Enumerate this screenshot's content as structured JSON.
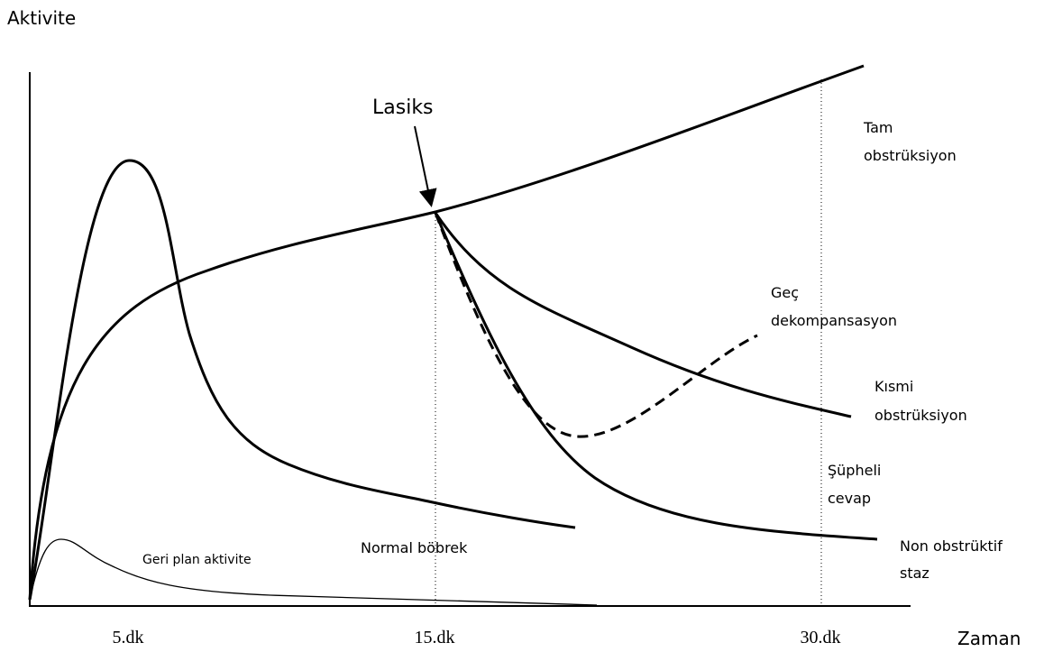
{
  "axes": {
    "y_label": "Aktivite",
    "x_label": "Zaman",
    "x_ticks": [
      "5.dk",
      "15.dk",
      "30.dk"
    ]
  },
  "marker": "Lasiks",
  "labels": {
    "tam": [
      "Tam",
      "obstrüksiyon"
    ],
    "gec": [
      "Geç",
      "dekompansasyon"
    ],
    "kismi": [
      "Kısmi",
      "obstrüksiyon"
    ],
    "supheli": [
      "Şüpheli",
      "cevap"
    ],
    "non": [
      "Non obstrüktif",
      "staz"
    ],
    "normal": "Normal böbrek",
    "geri": "Geri plan aktivite"
  }
}
